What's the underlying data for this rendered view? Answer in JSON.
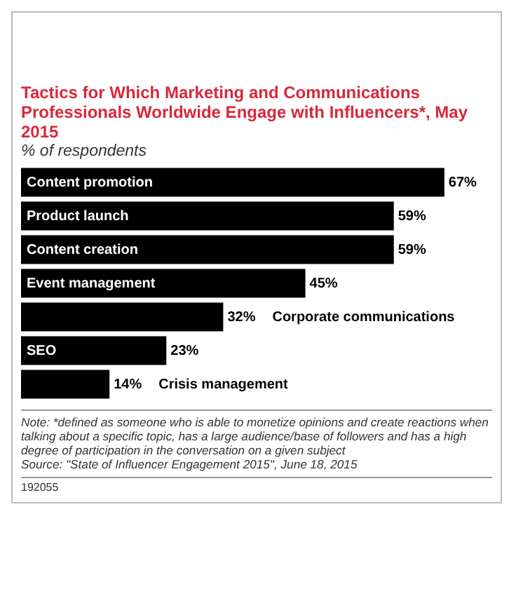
{
  "chart_data": {
    "type": "bar",
    "orientation": "horizontal",
    "title": "Tactics for Which Marketing and Communications Professionals Worldwide Engage with Influencers*, May 2015",
    "subtitle": "% of respondents",
    "categories": [
      "Content promotion",
      "Product launch",
      "Content creation",
      "Event management",
      "Corporate communications",
      "SEO",
      "Crisis management"
    ],
    "values": [
      67,
      59,
      59,
      45,
      32,
      23,
      14
    ],
    "value_labels": [
      "67%",
      "59%",
      "59%",
      "45%",
      "32%",
      "23%",
      "14%"
    ],
    "color": "#000000",
    "tick_labels": false,
    "annotations": [
      "Note: *defined as someone who is able to monetize opinions and create reactions when talking about a specific topic, has a large audience/base of followers and has a high degree of participation in the conversation on a given subject",
      "Source: \"State of Influencer Engagement 2015\", June 18, 2015",
      "192055"
    ]
  }
}
